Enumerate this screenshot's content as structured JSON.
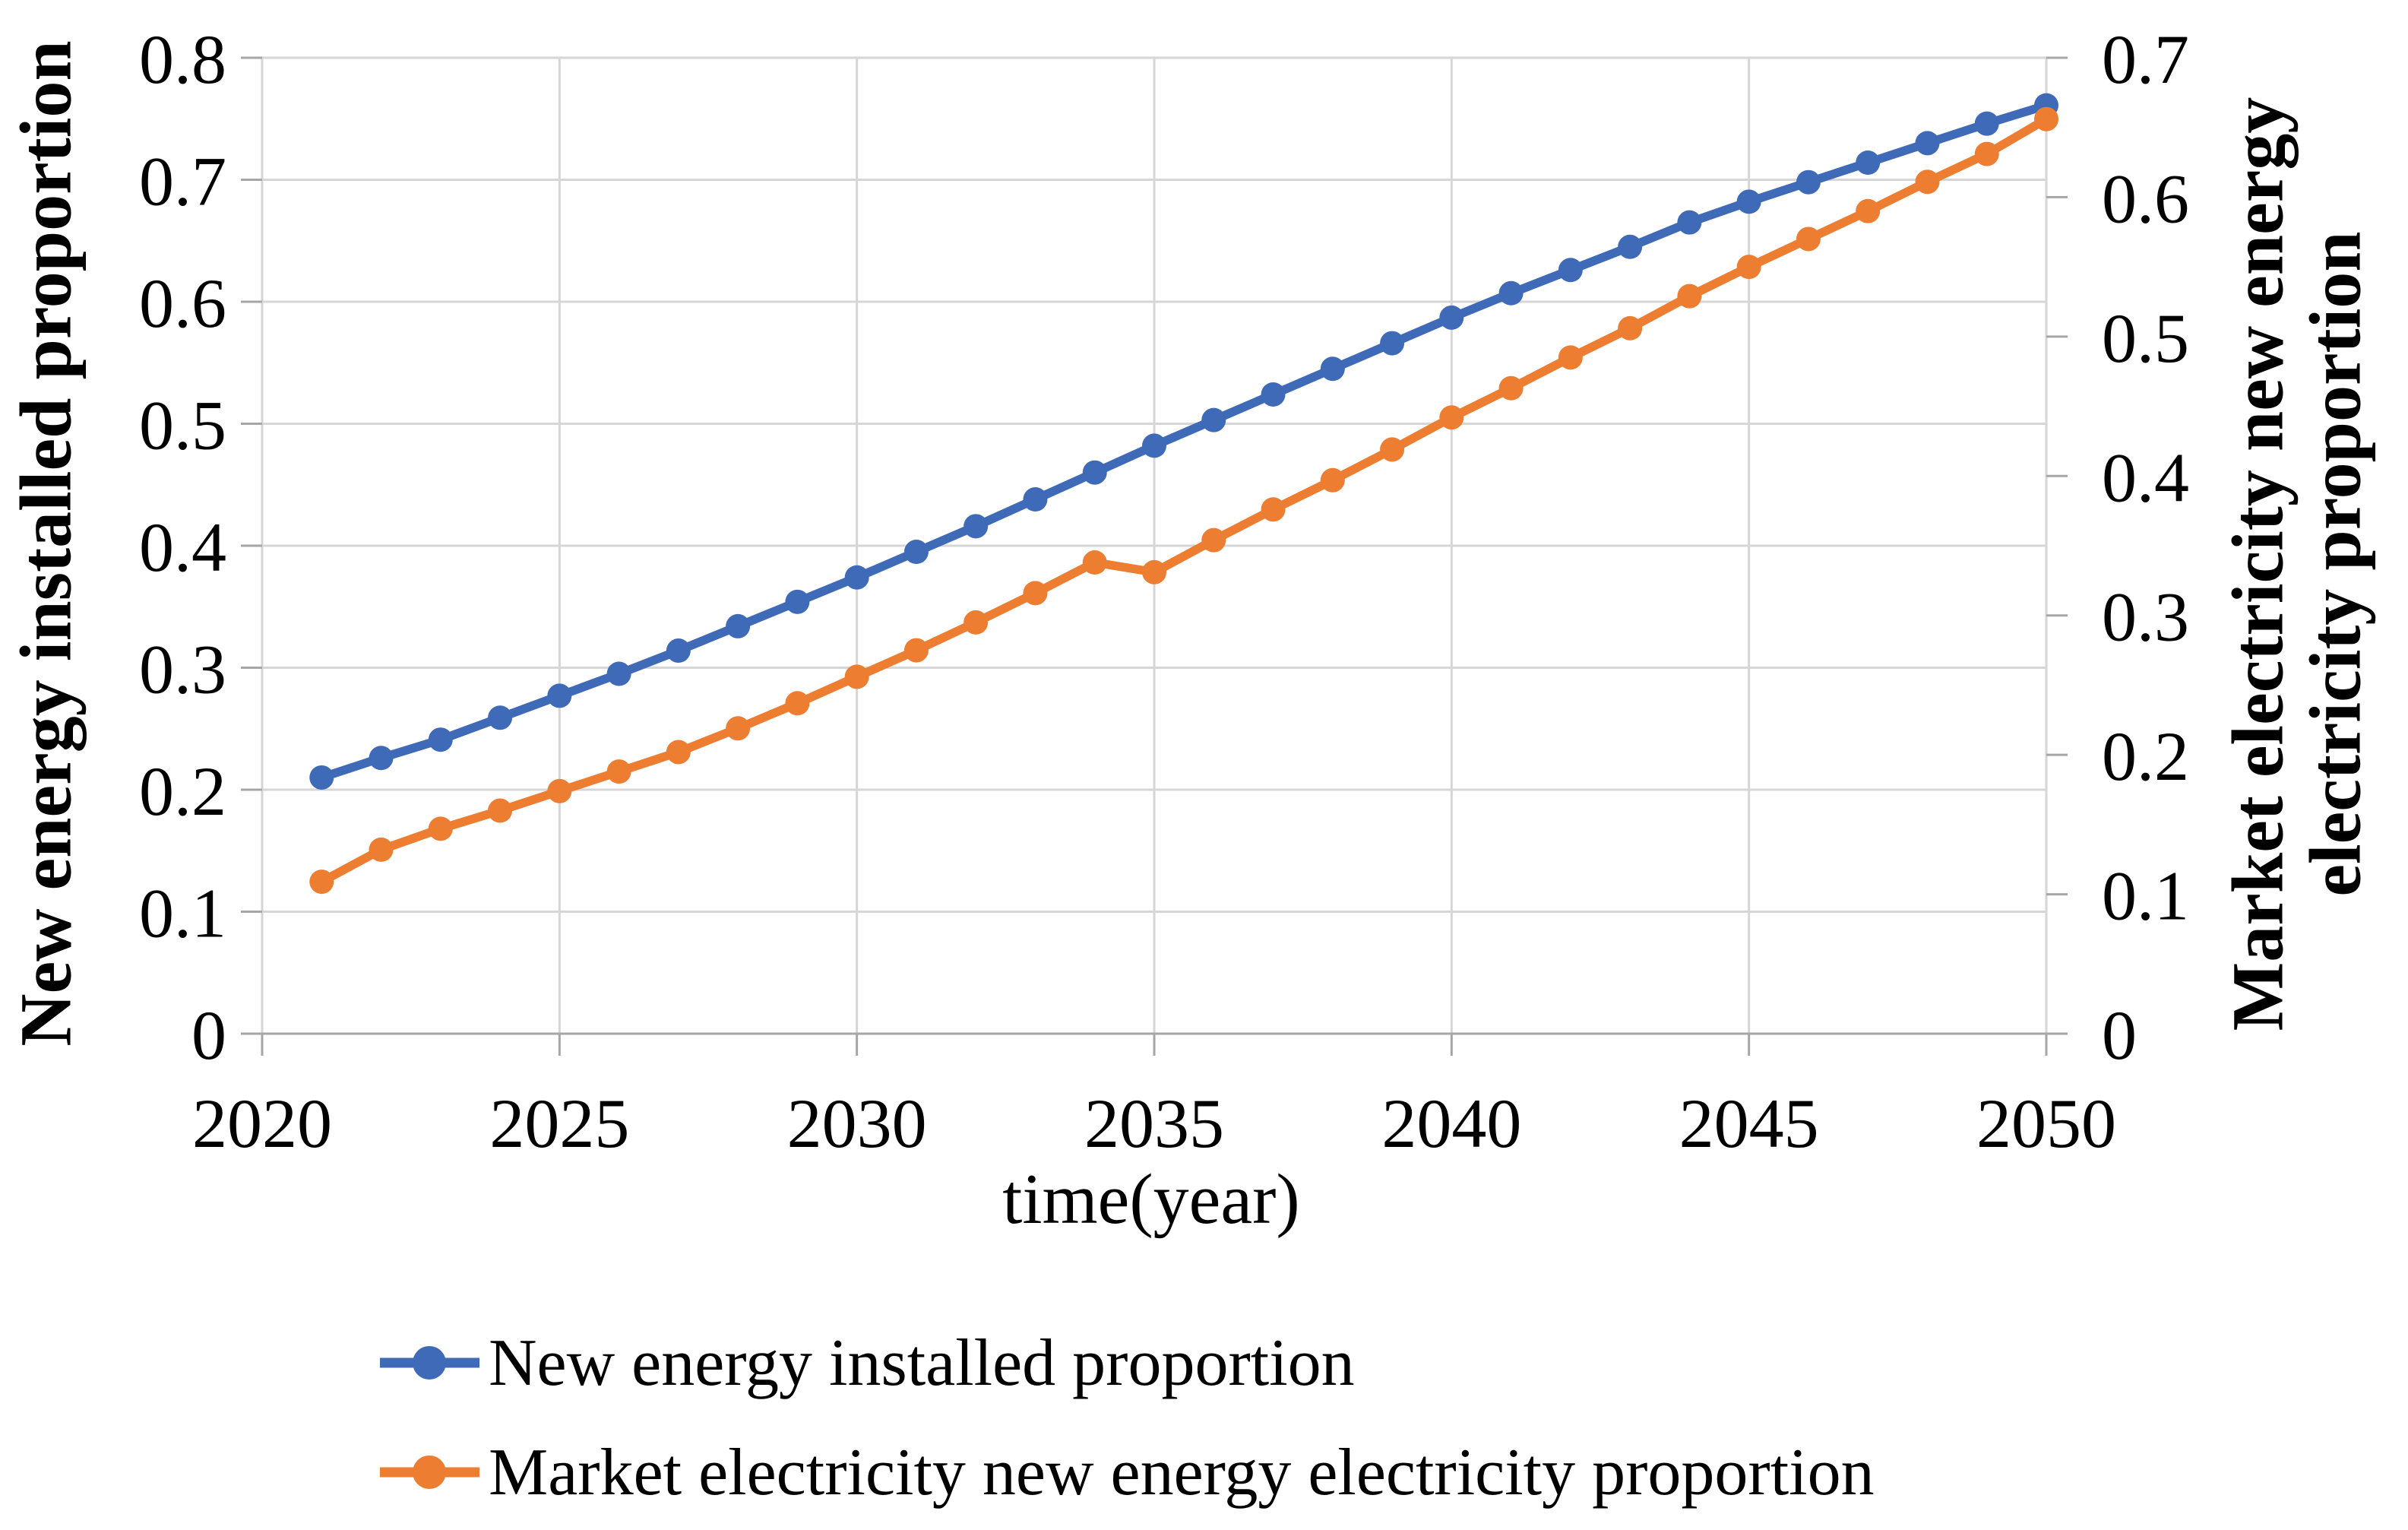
{
  "figure": {
    "background": "#ffffff"
  },
  "colors": {
    "series_blue": "#3F6AB7",
    "series_orange": "#ED7D31",
    "gridline": "#D6D6D6",
    "axis_line": "#A6A6A6",
    "text": "#000000"
  },
  "chart_data": {
    "type": "line",
    "title": "",
    "xlabel": "time(year)",
    "ylabel_left": "New energy installed proportion",
    "ylabel_right_lines": [
      "Market electricity new energy",
      "electricity proportion"
    ],
    "grid": true,
    "legend_position": "bottom-left",
    "x_axis": {
      "min": 2020,
      "max": 2050,
      "tick_labels": [
        "2020",
        "2025",
        "2030",
        "2035",
        "2040",
        "2045",
        "2050"
      ]
    },
    "left_axis": {
      "min": 0,
      "max": 0.8,
      "tick_labels": [
        "0",
        "0.1",
        "0.2",
        "0.3",
        "0.4",
        "0.5",
        "0.6",
        "0.7",
        "0.8"
      ]
    },
    "right_axis": {
      "min": 0,
      "max": 0.7,
      "tick_labels": [
        "0",
        "0.1",
        "0.2",
        "0.3",
        "0.4",
        "0.5",
        "0.6",
        "0.7"
      ]
    },
    "x": [
      2021,
      2022,
      2023,
      2024,
      2025,
      2026,
      2027,
      2028,
      2029,
      2030,
      2031,
      2032,
      2033,
      2034,
      2035,
      2036,
      2037,
      2038,
      2039,
      2040,
      2041,
      2042,
      2043,
      2044,
      2045,
      2046,
      2047,
      2048,
      2049,
      2050
    ],
    "series": [
      {
        "name": "New energy installed proportion",
        "axis": "left",
        "color": "#3F6AB7",
        "values": [
          0.21,
          0.226,
          0.241,
          0.259,
          0.277,
          0.295,
          0.314,
          0.334,
          0.354,
          0.374,
          0.395,
          0.416,
          0.438,
          0.46,
          0.482,
          0.503,
          0.524,
          0.545,
          0.566,
          0.587,
          0.607,
          0.626,
          0.645,
          0.665,
          0.682,
          0.698,
          0.714,
          0.73,
          0.746,
          0.761
        ]
      },
      {
        "name": "Market electricity new energy electricity proportion",
        "axis": "right",
        "color": "#ED7D31",
        "values": [
          0.109,
          0.132,
          0.147,
          0.16,
          0.174,
          0.188,
          0.202,
          0.219,
          0.237,
          0.256,
          0.275,
          0.295,
          0.316,
          0.338,
          0.331,
          0.354,
          0.376,
          0.397,
          0.419,
          0.442,
          0.463,
          0.485,
          0.506,
          0.529,
          0.55,
          0.57,
          0.59,
          0.611,
          0.631,
          0.656
        ]
      }
    ]
  }
}
